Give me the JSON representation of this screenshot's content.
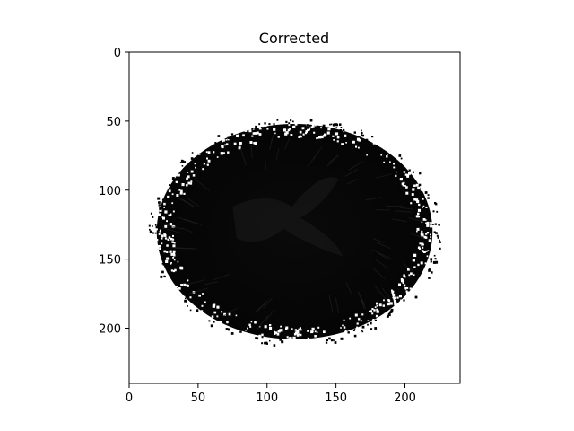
{
  "chart_data": {
    "type": "heatmap",
    "title": "Corrected",
    "xlabel": "",
    "ylabel": "",
    "xlim": [
      0,
      240
    ],
    "ylim": [
      240,
      0
    ],
    "x_ticks": [
      0,
      50,
      100,
      150,
      200
    ],
    "y_ticks": [
      0,
      50,
      100,
      150,
      200
    ],
    "image_description_colormap": "gray",
    "region": {
      "center_x": 120,
      "center_y": 130,
      "radius_x": 100,
      "radius_y": 78
    },
    "grid": false,
    "colors": {
      "background": "#ffffff",
      "image_fill": "#060606",
      "speckle": "#ffffff",
      "structure": "#1c1c1c",
      "axes": "#000000"
    }
  }
}
